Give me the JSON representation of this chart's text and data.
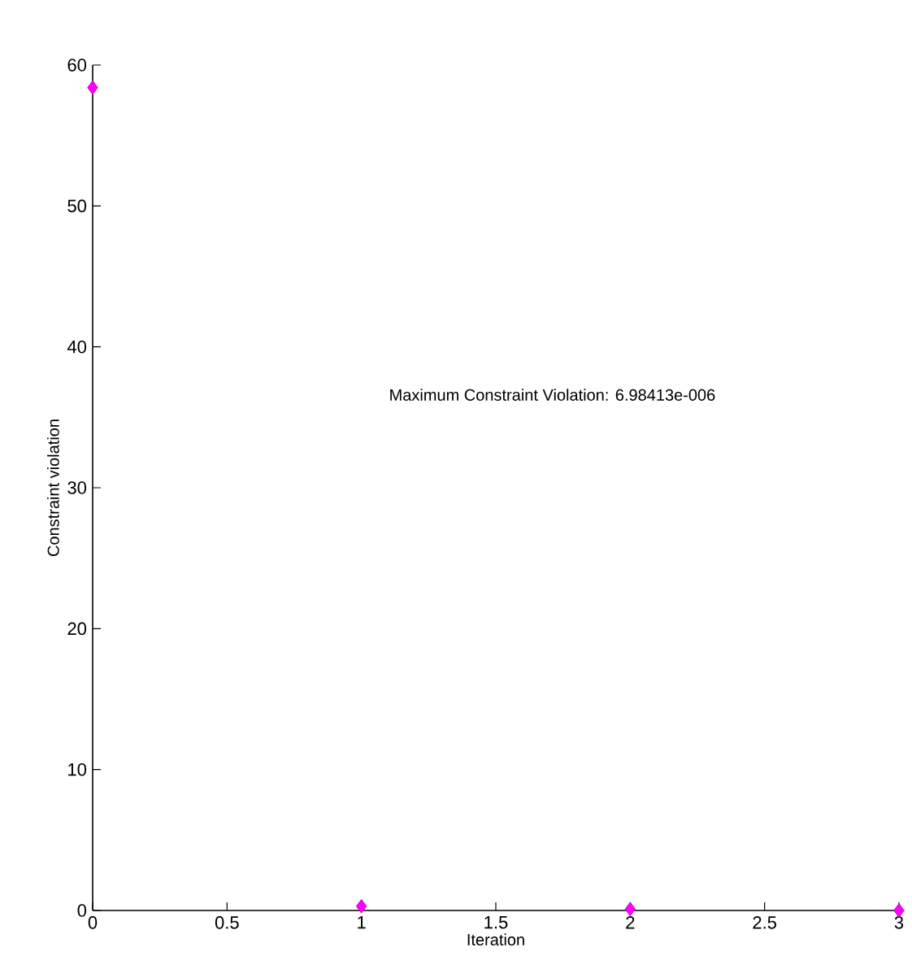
{
  "chart_data": {
    "type": "scatter",
    "xlabel": "Iteration",
    "ylabel": "Constraint violation",
    "annotations": [
      "Maximum Constraint Violation: 6.98413e-006"
    ],
    "x": [
      0,
      1,
      2,
      3
    ],
    "series": [
      {
        "color": "#ff00ff",
        "values": [
          58.4,
          0.3,
          0.1,
          0
        ]
      }
    ],
    "marker": "diamond",
    "grid": false,
    "xlim": [
      0,
      3
    ],
    "xticks": [
      0,
      0.5,
      1,
      1.5,
      2,
      2.5,
      3
    ],
    "ylim": [
      0,
      60
    ],
    "yticks": [
      0,
      10,
      20,
      30,
      40,
      50,
      60
    ]
  }
}
